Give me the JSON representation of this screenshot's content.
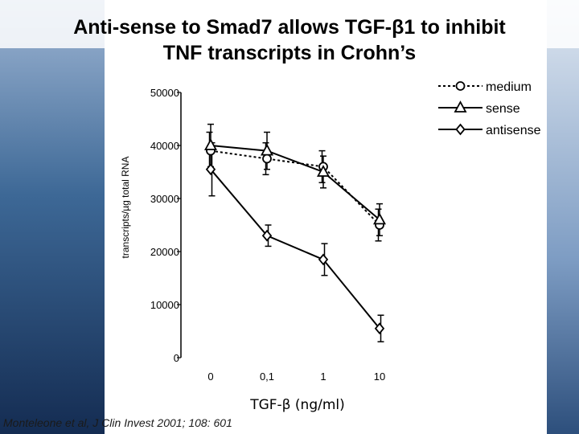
{
  "slide": {
    "title_line1": "Anti-sense to Smad7 allows TGF-β1 to inhibit",
    "title_line2": "TNF transcripts in Crohn’s",
    "citation": "Monteleone et al, J Clin Invest 2001; 108: 601"
  },
  "colors": {
    "bg_dark": "#142c52",
    "bg_mid": "#3d6896",
    "bg_light": "#7d9cc3",
    "plot_bg": "#ffffff",
    "ink": "#000000"
  },
  "chart_data": {
    "type": "line",
    "title": "",
    "xlabel": "TGF-β (ng/ml)",
    "ylabel": "transcripts/µg total RNA",
    "categories": [
      "0",
      "0,1",
      "1",
      "10"
    ],
    "yticks": [
      0,
      10000,
      20000,
      30000,
      40000,
      50000
    ],
    "ytick_labels": [
      "0",
      "10000",
      "20000",
      "30000",
      "40000",
      "50000"
    ],
    "ylim": [
      0,
      50000
    ],
    "grid": false,
    "legend_position": "top-right",
    "series": [
      {
        "name": "medium",
        "marker": "circle",
        "line_style": "dotted",
        "values": [
          39000,
          37500,
          36000,
          25000
        ],
        "errors": [
          3500,
          3000,
          3000,
          3000
        ]
      },
      {
        "name": "sense",
        "marker": "triangle",
        "line_style": "solid",
        "values": [
          40000,
          39000,
          35000,
          26000
        ],
        "errors": [
          4000,
          3500,
          3000,
          3000
        ]
      },
      {
        "name": "antisense",
        "marker": "diamond",
        "line_style": "solid",
        "values": [
          35500,
          23000,
          18500,
          5500
        ],
        "errors": [
          5000,
          2000,
          3000,
          2500
        ]
      }
    ]
  }
}
